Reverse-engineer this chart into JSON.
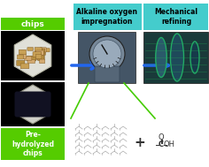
{
  "bg_color": "#ffffff",
  "label_green": "#55cc00",
  "blue_arrow_color": "#2266ee",
  "cyan_box_color": "#44cccc",
  "box1_label": "chips",
  "box2_label": "Pre-\nhydrolyzed\nchips",
  "mid_label": "Alkaline oxygen\nimpregnation",
  "right_label": "Mechanical\nrefining",
  "label_fontsize": 6.5,
  "plus_color": "#333333",
  "carboxyl_color": "#333333",
  "diagram_line_color": "#aaaaaa",
  "green_line_color": "#44cc00"
}
